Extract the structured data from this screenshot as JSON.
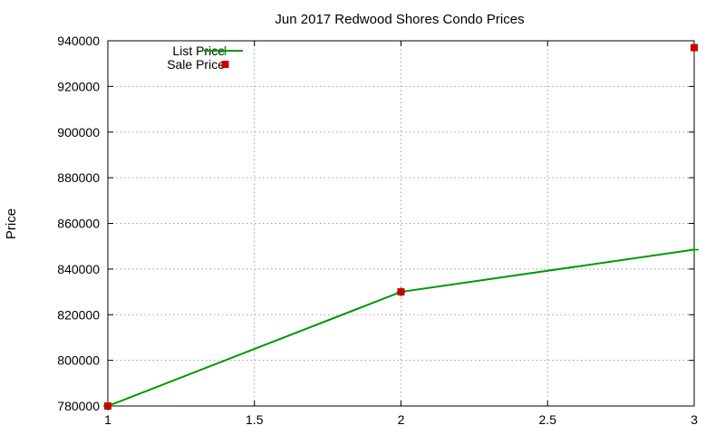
{
  "chart_data": {
    "type": "line",
    "title": "Jun 2017 Redwood Shores Condo Prices",
    "xlabel": "",
    "ylabel": "Price",
    "xlim": [
      1,
      3
    ],
    "ylim": [
      780000,
      940000
    ],
    "x_ticks": [
      "1",
      "1.5",
      "2",
      "2.5",
      "3"
    ],
    "x_tick_values": [
      1,
      1.5,
      2,
      2.5,
      3
    ],
    "y_ticks": [
      "780000",
      "800000",
      "820000",
      "840000",
      "860000",
      "880000",
      "900000",
      "920000",
      "940000"
    ],
    "y_tick_values": [
      780000,
      800000,
      820000,
      840000,
      860000,
      880000,
      900000,
      920000,
      940000
    ],
    "grid": true,
    "legend_position": "top-left",
    "series": [
      {
        "name": "List Price",
        "style": "lines+points",
        "marker": "plus",
        "color": "#009900",
        "x": [
          1,
          2,
          3
        ],
        "y": [
          780000,
          830000,
          848500
        ]
      },
      {
        "name": "Sale Price",
        "style": "points",
        "marker": "square",
        "color": "#cc0000",
        "x": [
          1,
          2,
          3
        ],
        "y": [
          780000,
          830000,
          937000
        ]
      }
    ]
  }
}
